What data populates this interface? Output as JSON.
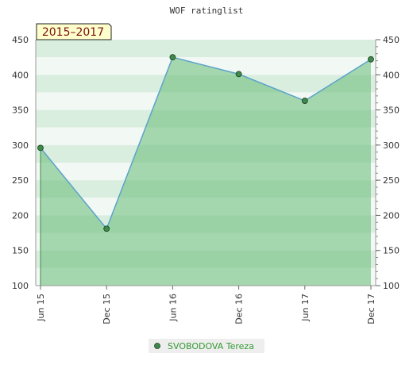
{
  "chart_data": {
    "type": "area",
    "title": "WOF ratinglist",
    "period_label": "2015–2017",
    "categories": [
      "Jun 15",
      "Dec 15",
      "Jun 16",
      "Dec 16",
      "Jun 17",
      "Dec 17"
    ],
    "series": [
      {
        "name": "SVOBODOVA Tereza",
        "values": [
          296,
          181,
          425,
          401,
          363,
          422
        ]
      }
    ],
    "ylim": [
      100,
      450
    ],
    "y_ticks": [
      100,
      150,
      200,
      250,
      300,
      350,
      400,
      450
    ],
    "grid": true,
    "legend_position": "bottom",
    "colors": {
      "line": "#5ba3c9",
      "fill": "#66bb77",
      "marker": "#3d8a4a",
      "badge_bg": "#ffffcc",
      "badge_text": "#7a1010",
      "legend_text": "#339933"
    }
  }
}
